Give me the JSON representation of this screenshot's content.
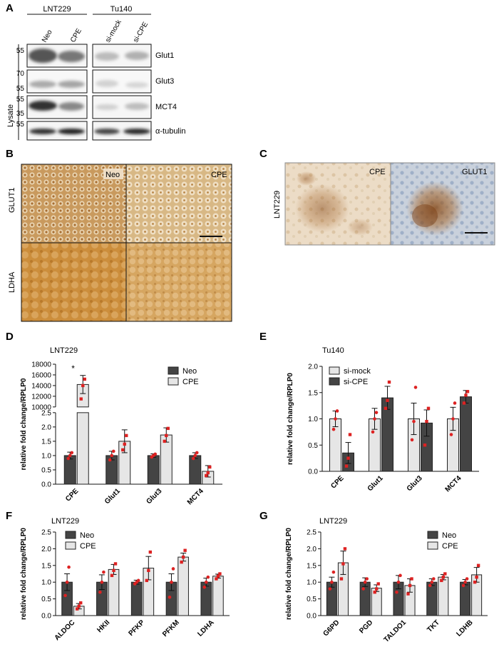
{
  "panels": {
    "A": {
      "label": "A",
      "groups": [
        "LNT229",
        "Tu140"
      ],
      "lanes": [
        "Neo",
        "CPE",
        "si-mock",
        "si-CPE"
      ],
      "side_label": "Lysate",
      "rows": [
        {
          "name": "Glut1",
          "markers": [
            "55"
          ]
        },
        {
          "name": "Glut3",
          "markers": [
            "70",
            "55"
          ]
        },
        {
          "name": "MCT4",
          "markers": [
            "55",
            "35"
          ]
        },
        {
          "name": "α-tubulin",
          "markers": [
            "55"
          ]
        }
      ]
    },
    "B": {
      "label": "B",
      "col_labels": [
        "Neo",
        "CPE"
      ],
      "row_labels": [
        "GLUT1",
        "LDHA"
      ],
      "colors": {
        "glut1_tile": "#c79a5c",
        "ldha_tile": "#cf9a4a",
        "cpe_glut1_tile": "#d9b480"
      }
    },
    "C": {
      "label": "C",
      "side_label": "LNT229",
      "tile_labels": [
        "CPE",
        "GLUT1"
      ],
      "colors": {
        "background": "#e8d8c2",
        "counterstain": "#9fb0c8",
        "stain": "#a86a30"
      }
    }
  },
  "chart_data": [
    {
      "panel": "D",
      "type": "bar",
      "title": "LNT229",
      "ylabel": "relative fold change/RPLP0",
      "categories": [
        "CPE",
        "Glut1",
        "Glut3",
        "MCT4"
      ],
      "series": [
        {
          "name": "Neo",
          "color": "#444444",
          "values": [
            1.0,
            1.0,
            1.0,
            1.0
          ],
          "errors": [
            0.12,
            0.15,
            0.06,
            0.1
          ],
          "points": [
            [
              0.9,
              1.0,
              1.1
            ],
            [
              0.85,
              1.0,
              1.15
            ],
            [
              0.95,
              1.0,
              1.05
            ],
            [
              0.9,
              1.0,
              1.1
            ]
          ]
        },
        {
          "name": "CPE",
          "color": "#e6e6e6",
          "values": [
            14200,
            1.5,
            1.72,
            0.45
          ],
          "errors": [
            1700,
            0.4,
            0.25,
            0.2
          ],
          "points": [
            [
              11500,
              14000,
              15200
            ],
            [
              1.2,
              1.4,
              1.7
            ],
            [
              1.5,
              1.7,
              1.95
            ],
            [
              0.3,
              0.4,
              0.6
            ]
          ]
        }
      ],
      "broken_axis": true,
      "y_lower_ticks": [
        "0.0",
        "0.5",
        "1.0",
        "1.5",
        "2.0",
        "2.5"
      ],
      "y_upper_ticks": [
        "10000",
        "12000",
        "14000",
        "16000",
        "18000"
      ],
      "ylim_lower": [
        0,
        2.5
      ],
      "ylim_upper": [
        10000,
        18000
      ],
      "annotation": "*",
      "legend_position": "top-right"
    },
    {
      "panel": "E",
      "type": "bar",
      "title": "Tu140",
      "ylabel": "relative fold change/RPLP0",
      "categories": [
        "CPE",
        "Glut1",
        "Glut3",
        "MCT4"
      ],
      "series": [
        {
          "name": "si-mock",
          "color": "#e6e6e6",
          "values": [
            1.0,
            1.0,
            1.0,
            1.0
          ],
          "errors": [
            0.15,
            0.2,
            0.3,
            0.22
          ],
          "points": [
            [
              0.8,
              1.0,
              1.15
            ],
            [
              0.75,
              1.0,
              1.12
            ],
            [
              0.6,
              0.95,
              1.6
            ],
            [
              0.7,
              1.0,
              1.3
            ]
          ]
        },
        {
          "name": "si-CPE",
          "color": "#444444",
          "values": [
            0.35,
            1.4,
            0.92,
            1.42
          ],
          "errors": [
            0.2,
            0.22,
            0.25,
            0.12
          ],
          "points": [
            [
              0.1,
              0.25,
              0.7
            ],
            [
              1.2,
              1.35,
              1.7
            ],
            [
              0.5,
              0.95,
              1.2
            ],
            [
              1.3,
              1.45,
              1.52
            ]
          ]
        }
      ],
      "y_ticks": [
        "0.0",
        "0.5",
        "1.0",
        "1.5",
        "2.0"
      ],
      "ylim": [
        0,
        2.0
      ],
      "legend_position": "top-left"
    },
    {
      "panel": "F",
      "type": "bar",
      "title": "LNT229",
      "ylabel": "relative fold change/RPLP0",
      "categories": [
        "ALDOC",
        "HKII",
        "PFKP",
        "PFKM",
        "LDHA"
      ],
      "series": [
        {
          "name": "Neo",
          "color": "#444444",
          "values": [
            1.0,
            1.0,
            1.0,
            1.0,
            1.0
          ],
          "errors": [
            0.25,
            0.22,
            0.06,
            0.25,
            0.12
          ],
          "points": [
            [
              0.6,
              1.0,
              1.45
            ],
            [
              0.7,
              1.0,
              1.3
            ],
            [
              0.95,
              1.0,
              1.05
            ],
            [
              0.55,
              1.0,
              1.4
            ],
            [
              0.85,
              1.0,
              1.15
            ]
          ]
        },
        {
          "name": "CPE",
          "color": "#e6e6e6",
          "values": [
            0.28,
            1.38,
            1.42,
            1.75,
            1.18
          ],
          "errors": [
            0.08,
            0.15,
            0.35,
            0.12,
            0.06
          ],
          "points": [
            [
              0.2,
              0.28,
              0.38
            ],
            [
              1.2,
              1.35,
              1.55
            ],
            [
              1.05,
              1.35,
              1.9
            ],
            [
              1.6,
              1.75,
              1.95
            ],
            [
              1.1,
              1.18,
              1.25
            ]
          ]
        }
      ],
      "y_ticks": [
        "0.0",
        "0.5",
        "1.0",
        "1.5",
        "2.0",
        "2.5"
      ],
      "ylim": [
        0,
        2.5
      ],
      "legend_position": "top-left"
    },
    {
      "panel": "G",
      "type": "bar",
      "title": "LNT229",
      "ylabel": "relative fold change/RPLP0",
      "categories": [
        "G6PD",
        "PGD",
        "TALDO1",
        "TKT",
        "LDHB"
      ],
      "series": [
        {
          "name": "Neo",
          "color": "#444444",
          "values": [
            1.0,
            1.0,
            1.0,
            1.0,
            1.0
          ],
          "errors": [
            0.15,
            0.13,
            0.2,
            0.1,
            0.08
          ],
          "points": [
            [
              0.8,
              1.0,
              1.3
            ],
            [
              0.8,
              1.0,
              1.1
            ],
            [
              0.7,
              1.0,
              1.2
            ],
            [
              0.9,
              1.0,
              1.1
            ],
            [
              0.9,
              1.0,
              1.1
            ]
          ]
        },
        {
          "name": "CPE",
          "color": "#e6e6e6",
          "values": [
            1.58,
            0.82,
            0.9,
            1.15,
            1.22
          ],
          "errors": [
            0.35,
            0.1,
            0.2,
            0.08,
            0.22
          ],
          "points": [
            [
              1.1,
              1.55,
              2.0
            ],
            [
              0.7,
              0.8,
              0.95
            ],
            [
              0.65,
              0.9,
              1.1
            ],
            [
              1.05,
              1.15,
              1.25
            ],
            [
              1.0,
              1.15,
              1.5
            ]
          ]
        }
      ],
      "y_ticks": [
        "0.0",
        "0.5",
        "1.0",
        "1.5",
        "2.0",
        "2.5"
      ],
      "ylim": [
        0,
        2.5
      ],
      "legend_position": "top-right"
    }
  ],
  "style": {
    "dot_color": "#dd2222"
  }
}
